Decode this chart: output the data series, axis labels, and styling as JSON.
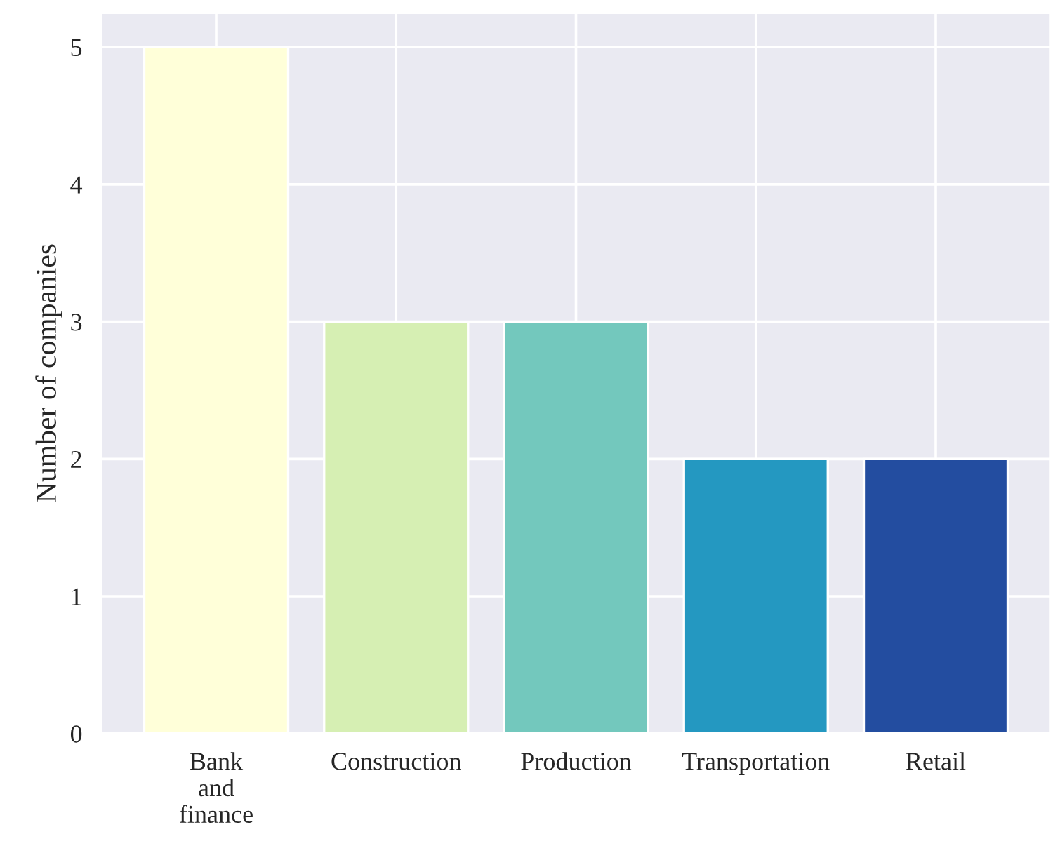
{
  "chart_data": {
    "type": "bar",
    "ylabel": "Number of companies",
    "categories": [
      "Bank\nand\nfinance",
      "Construction",
      "Production",
      "Transportation",
      "Retail"
    ],
    "values": [
      5,
      3,
      3,
      2,
      2
    ],
    "colors": [
      "#ffffd9",
      "#d6efb3",
      "#73c8bd",
      "#2498c1",
      "#234da0"
    ],
    "ylim": [
      0,
      5.25
    ],
    "yticks": [
      0,
      1,
      2,
      3,
      4,
      5
    ],
    "grid": true
  }
}
